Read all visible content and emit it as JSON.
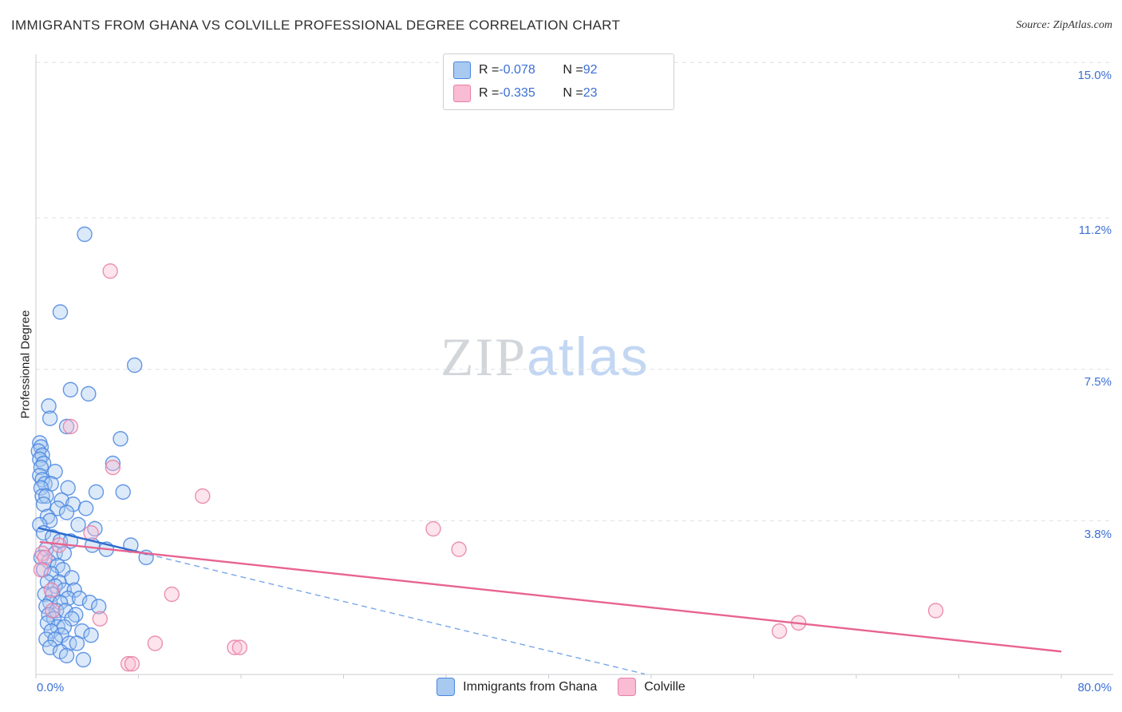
{
  "header": {
    "title": "IMMIGRANTS FROM GHANA VS COLVILLE PROFESSIONAL DEGREE CORRELATION CHART",
    "source": "Source: ZipAtlas.com"
  },
  "watermark": {
    "zip": "ZIP",
    "atlas": "atlas"
  },
  "axes": {
    "y_label": "Professional Degree",
    "x_min_label": "0.0%",
    "x_max_label": "80.0%",
    "y_tick_labels": [
      "15.0%",
      "11.2%",
      "7.5%",
      "3.8%"
    ]
  },
  "legend_box": {
    "rows": [
      {
        "r_label": "R = ",
        "r": "-0.078",
        "n_label": "N = ",
        "n": "92",
        "series": "Immigrants from Ghana"
      },
      {
        "r_label": "R = ",
        "r": "-0.335",
        "n_label": "N = ",
        "n": "23",
        "series": "Colville"
      }
    ]
  },
  "bottom_legend": {
    "items": [
      {
        "label": "Immigrants from Ghana"
      },
      {
        "label": "Colville"
      }
    ]
  },
  "colors": {
    "ghana_fill": "#a8c9f0",
    "ghana_stroke": "#4a86e0",
    "colville_fill": "#f9bcd3",
    "colville_stroke": "#e87fa6",
    "ghana_trend": "#2e6bcf",
    "ghana_trend_dashed": "#7aa7e8",
    "colville_trend": "#e8638f",
    "accent_text": "#3b6fd4",
    "gridline": "#dde1e6",
    "spine": "#c9ccd1"
  },
  "chart_data": {
    "type": "scatter",
    "title": "IMMIGRANTS FROM GHANA VS COLVILLE PROFESSIONAL DEGREE CORRELATION CHART",
    "xlabel": "Immigrants from Ghana (%)",
    "ylabel": "Professional Degree (%)",
    "xlim": [
      0,
      80
    ],
    "ylim": [
      0,
      15.6
    ],
    "grid": true,
    "gridlines_pct": [
      3.8,
      7.5,
      11.2,
      15.0
    ],
    "x_ticks_pct": [
      0,
      8,
      16,
      24,
      32,
      40,
      48,
      56,
      64,
      72,
      80
    ],
    "legend_position": "bottom-center",
    "series": [
      {
        "name": "Immigrants from Ghana",
        "R": -0.078,
        "N": 92,
        "points": [
          [
            3.8,
            10.8
          ],
          [
            1.9,
            8.9
          ],
          [
            7.7,
            7.6
          ],
          [
            2.7,
            7.0
          ],
          [
            4.1,
            6.9
          ],
          [
            1.0,
            6.6
          ],
          [
            1.1,
            6.3
          ],
          [
            2.4,
            6.1
          ],
          [
            6.6,
            5.8
          ],
          [
            0.3,
            5.7
          ],
          [
            0.4,
            5.6
          ],
          [
            0.2,
            5.5
          ],
          [
            0.5,
            5.4
          ],
          [
            0.3,
            5.3
          ],
          [
            0.6,
            5.2
          ],
          [
            0.4,
            5.1
          ],
          [
            6.0,
            5.2
          ],
          [
            1.5,
            5.0
          ],
          [
            0.3,
            4.9
          ],
          [
            0.5,
            4.8
          ],
          [
            0.7,
            4.7
          ],
          [
            1.2,
            4.7
          ],
          [
            0.4,
            4.6
          ],
          [
            2.5,
            4.6
          ],
          [
            4.7,
            4.5
          ],
          [
            6.8,
            4.5
          ],
          [
            0.5,
            4.4
          ],
          [
            0.8,
            4.4
          ],
          [
            2.0,
            4.3
          ],
          [
            2.9,
            4.2
          ],
          [
            0.6,
            4.2
          ],
          [
            1.7,
            4.1
          ],
          [
            2.4,
            4.0
          ],
          [
            3.9,
            4.1
          ],
          [
            0.9,
            3.9
          ],
          [
            1.1,
            3.8
          ],
          [
            0.3,
            3.7
          ],
          [
            3.3,
            3.7
          ],
          [
            4.6,
            3.6
          ],
          [
            0.6,
            3.5
          ],
          [
            1.3,
            3.4
          ],
          [
            1.9,
            3.3
          ],
          [
            2.7,
            3.3
          ],
          [
            4.4,
            3.2
          ],
          [
            5.5,
            3.1
          ],
          [
            7.4,
            3.2
          ],
          [
            8.6,
            2.9
          ],
          [
            0.8,
            3.1
          ],
          [
            1.5,
            3.0
          ],
          [
            2.2,
            3.0
          ],
          [
            0.4,
            2.9
          ],
          [
            1.0,
            2.8
          ],
          [
            1.7,
            2.7
          ],
          [
            2.1,
            2.6
          ],
          [
            0.6,
            2.6
          ],
          [
            1.2,
            2.5
          ],
          [
            2.8,
            2.4
          ],
          [
            1.8,
            2.3
          ],
          [
            0.9,
            2.3
          ],
          [
            1.5,
            2.2
          ],
          [
            2.2,
            2.1
          ],
          [
            3.0,
            2.1
          ],
          [
            0.7,
            2.0
          ],
          [
            1.3,
            2.0
          ],
          [
            2.5,
            1.9
          ],
          [
            3.4,
            1.9
          ],
          [
            1.1,
            1.8
          ],
          [
            1.9,
            1.8
          ],
          [
            4.2,
            1.8
          ],
          [
            4.9,
            1.7
          ],
          [
            0.8,
            1.7
          ],
          [
            1.6,
            1.6
          ],
          [
            2.3,
            1.6
          ],
          [
            3.1,
            1.5
          ],
          [
            1.0,
            1.5
          ],
          [
            1.4,
            1.4
          ],
          [
            2.8,
            1.4
          ],
          [
            0.9,
            1.3
          ],
          [
            1.7,
            1.2
          ],
          [
            2.2,
            1.2
          ],
          [
            3.6,
            1.1
          ],
          [
            1.2,
            1.1
          ],
          [
            2.0,
            1.0
          ],
          [
            4.3,
            1.0
          ],
          [
            0.8,
            0.9
          ],
          [
            1.5,
            0.9
          ],
          [
            2.6,
            0.8
          ],
          [
            3.2,
            0.8
          ],
          [
            1.1,
            0.7
          ],
          [
            1.9,
            0.6
          ],
          [
            2.4,
            0.5
          ],
          [
            3.7,
            0.4
          ]
        ]
      },
      {
        "name": "Colville",
        "R": -0.335,
        "N": 23,
        "points": [
          [
            5.8,
            9.9
          ],
          [
            2.7,
            6.1
          ],
          [
            6.0,
            5.1
          ],
          [
            13.0,
            4.4
          ],
          [
            31.0,
            3.6
          ],
          [
            33.0,
            3.1
          ],
          [
            0.5,
            3.0
          ],
          [
            0.7,
            2.9
          ],
          [
            1.8,
            3.2
          ],
          [
            4.3,
            3.5
          ],
          [
            1.2,
            2.1
          ],
          [
            10.6,
            2.0
          ],
          [
            1.3,
            1.6
          ],
          [
            5.0,
            1.4
          ],
          [
            58.0,
            1.1
          ],
          [
            59.5,
            1.3
          ],
          [
            70.2,
            1.6
          ],
          [
            9.3,
            0.8
          ],
          [
            15.5,
            0.7
          ],
          [
            15.9,
            0.7
          ],
          [
            7.2,
            0.3
          ],
          [
            7.5,
            0.3
          ],
          [
            0.4,
            2.6
          ]
        ]
      }
    ],
    "trend_lines": [
      {
        "series": "Immigrants from Ghana",
        "solid": [
          [
            0.2,
            3.62
          ],
          [
            8.7,
            2.98
          ]
        ],
        "dashed": [
          [
            8.7,
            2.98
          ],
          [
            47.5,
            0.05
          ]
        ]
      },
      {
        "series": "Colville",
        "solid": [
          [
            0.3,
            3.28
          ],
          [
            80.0,
            0.6
          ]
        ]
      }
    ]
  }
}
